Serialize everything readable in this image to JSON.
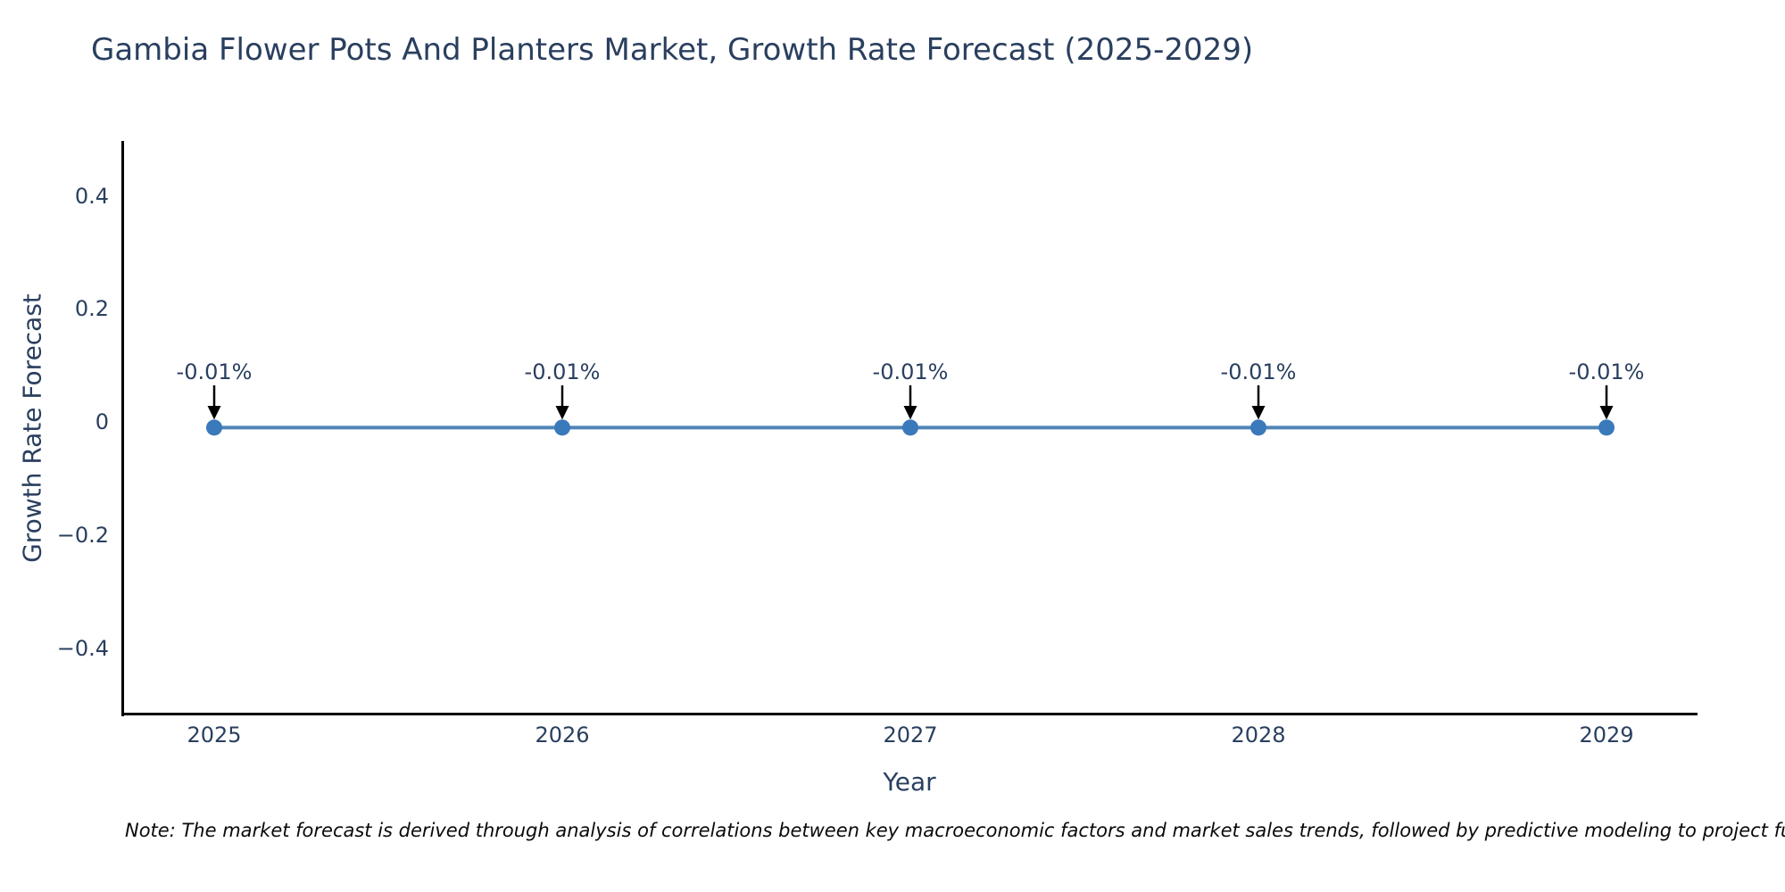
{
  "title": "Gambia Flower Pots And Planters Market, Growth Rate Forecast (2025-2029)",
  "note": "Note: The market forecast is derived through analysis of correlations between key macroeconomic factors and market sales trends, followed by predictive modeling to project future sa",
  "chart_data": {
    "type": "line",
    "title": "Gambia Flower Pots And Planters Market, Growth Rate Forecast (2025-2029)",
    "xlabel": "Year",
    "ylabel": "Growth Rate Forecast",
    "x": [
      2025,
      2026,
      2027,
      2028,
      2029
    ],
    "xtick_labels": [
      "2025",
      "2026",
      "2027",
      "2028",
      "2029"
    ],
    "series": [
      {
        "name": "Growth Rate Forecast",
        "values": [
          -0.01,
          -0.01,
          -0.01,
          -0.01,
          -0.01
        ]
      }
    ],
    "point_labels": [
      "-0.01%",
      "-0.01%",
      "-0.01%",
      "-0.01%",
      "-0.01%"
    ],
    "ylim": [
      -0.5,
      0.5
    ],
    "yticks": [
      0.4,
      0.2,
      0,
      -0.2,
      -0.4
    ],
    "ytick_labels": [
      "0.4",
      "0.2",
      "0",
      "−0.2",
      "−0.4"
    ],
    "grid": false,
    "legend": "none",
    "marker_style": "circle",
    "annotation_arrow": "down",
    "colors": {
      "line": "#4f84b6",
      "marker": "#3a79ba",
      "arrow": "#000000",
      "axis": "#000000",
      "text": "#2a3f5f",
      "note_text": "#0a0a0a",
      "background": "#ffffff"
    }
  }
}
